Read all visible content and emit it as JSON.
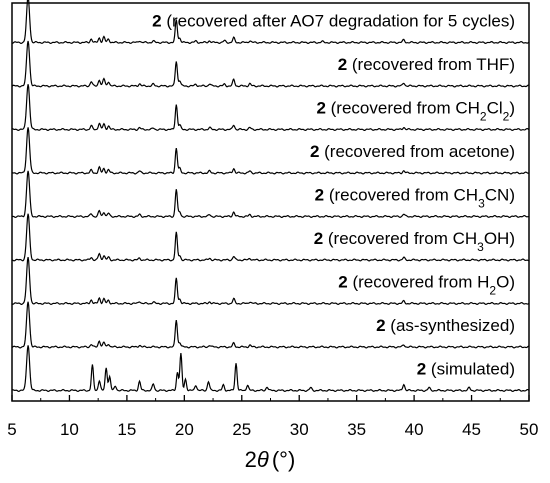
{
  "chart_data": {
    "type": "line",
    "title": "",
    "xlabel": {
      "prefix": "2",
      "symbol": "θ",
      "unit": "(°)"
    },
    "ylabel": "",
    "xlim": [
      5,
      50
    ],
    "xticks": [
      "5",
      "10",
      "15",
      "20",
      "25",
      "30",
      "35",
      "40",
      "45",
      "50"
    ],
    "y_ticks_labeled": false,
    "grid": false,
    "series": [
      {
        "label": {
          "bold": "2",
          "text": " (recovered after AO7 degradation for 5 cycles)"
        },
        "peaks": [
          [
            6.4,
            1.0
          ],
          [
            11.9,
            0.08
          ],
          [
            12.6,
            0.1
          ],
          [
            13.0,
            0.12
          ],
          [
            13.4,
            0.08
          ],
          [
            16.1,
            0.04
          ],
          [
            17.3,
            0.03
          ],
          [
            19.3,
            0.5
          ],
          [
            19.6,
            0.1
          ],
          [
            21.0,
            0.03
          ],
          [
            22.2,
            0.04
          ],
          [
            23.5,
            0.04
          ],
          [
            24.3,
            0.1
          ],
          [
            25.7,
            0.04
          ],
          [
            32.0,
            0.02
          ],
          [
            39.1,
            0.06
          ]
        ]
      },
      {
        "label": {
          "bold": "2",
          "text": " (recovered from THF)"
        },
        "peaks": [
          [
            6.4,
            1.0
          ],
          [
            11.9,
            0.1
          ],
          [
            12.6,
            0.14
          ],
          [
            13.0,
            0.16
          ],
          [
            13.4,
            0.1
          ],
          [
            16.1,
            0.05
          ],
          [
            17.3,
            0.04
          ],
          [
            19.3,
            0.55
          ],
          [
            19.6,
            0.12
          ],
          [
            21.0,
            0.04
          ],
          [
            22.2,
            0.05
          ],
          [
            23.5,
            0.04
          ],
          [
            24.3,
            0.14
          ],
          [
            25.7,
            0.05
          ],
          [
            39.1,
            0.07
          ]
        ]
      },
      {
        "label": {
          "bold": "2",
          "text": " (recovered from CH",
          "sub": "2",
          "text2": "Cl",
          "sub2": "2",
          "text3": ")"
        },
        "peaks": [
          [
            6.4,
            1.0
          ],
          [
            11.9,
            0.08
          ],
          [
            12.6,
            0.14
          ],
          [
            13.0,
            0.12
          ],
          [
            13.4,
            0.08
          ],
          [
            16.1,
            0.04
          ],
          [
            17.3,
            0.03
          ],
          [
            19.3,
            0.55
          ],
          [
            19.6,
            0.1
          ],
          [
            22.2,
            0.04
          ],
          [
            24.3,
            0.1
          ],
          [
            25.7,
            0.04
          ],
          [
            39.1,
            0.05
          ]
        ]
      },
      {
        "label": {
          "bold": "2",
          "text": " (recovered from acetone)"
        },
        "peaks": [
          [
            6.4,
            1.0
          ],
          [
            11.9,
            0.06
          ],
          [
            12.6,
            0.12
          ],
          [
            13.0,
            0.1
          ],
          [
            13.4,
            0.07
          ],
          [
            16.1,
            0.04
          ],
          [
            19.3,
            0.55
          ],
          [
            19.6,
            0.1
          ],
          [
            22.2,
            0.04
          ],
          [
            24.3,
            0.1
          ],
          [
            25.7,
            0.04
          ],
          [
            39.1,
            0.05
          ]
        ]
      },
      {
        "label": {
          "bold": "2",
          "text": " (recovered from CH",
          "sub": "3",
          "text2": "CN)"
        },
        "peaks": [
          [
            6.4,
            1.0
          ],
          [
            11.9,
            0.06
          ],
          [
            12.6,
            0.12
          ],
          [
            13.0,
            0.1
          ],
          [
            13.4,
            0.07
          ],
          [
            16.1,
            0.04
          ],
          [
            19.3,
            0.6
          ],
          [
            19.6,
            0.1
          ],
          [
            22.2,
            0.04
          ],
          [
            24.3,
            0.1
          ],
          [
            25.7,
            0.04
          ],
          [
            39.1,
            0.05
          ]
        ]
      },
      {
        "label": {
          "bold": "2",
          "text": " (recovered from CH",
          "sub": "3",
          "text2": "OH)"
        },
        "peaks": [
          [
            6.4,
            1.0
          ],
          [
            11.9,
            0.06
          ],
          [
            12.6,
            0.14
          ],
          [
            13.0,
            0.1
          ],
          [
            13.4,
            0.06
          ],
          [
            16.1,
            0.04
          ],
          [
            19.3,
            0.6
          ],
          [
            19.6,
            0.1
          ],
          [
            22.2,
            0.04
          ],
          [
            24.3,
            0.08
          ],
          [
            25.7,
            0.04
          ],
          [
            39.1,
            0.05
          ]
        ]
      },
      {
        "label": {
          "bold": "2",
          "text": " (recovered from H",
          "sub": "2",
          "text2": "O)"
        },
        "peaks": [
          [
            6.4,
            1.0
          ],
          [
            11.9,
            0.08
          ],
          [
            12.6,
            0.12
          ],
          [
            13.0,
            0.1
          ],
          [
            13.4,
            0.07
          ],
          [
            16.1,
            0.05
          ],
          [
            17.3,
            0.03
          ],
          [
            19.3,
            0.55
          ],
          [
            19.6,
            0.1
          ],
          [
            22.2,
            0.04
          ],
          [
            24.3,
            0.1
          ],
          [
            25.7,
            0.04
          ],
          [
            39.1,
            0.05
          ]
        ]
      },
      {
        "label": {
          "bold": "2",
          "text": " (as-synthesized)"
        },
        "peaks": [
          [
            6.4,
            1.0
          ],
          [
            11.9,
            0.06
          ],
          [
            12.6,
            0.14
          ],
          [
            13.0,
            0.1
          ],
          [
            13.4,
            0.07
          ],
          [
            16.1,
            0.04
          ],
          [
            19.3,
            0.6
          ],
          [
            19.6,
            0.1
          ],
          [
            22.2,
            0.04
          ],
          [
            24.3,
            0.08
          ],
          [
            25.7,
            0.04
          ],
          [
            39.1,
            0.05
          ]
        ]
      },
      {
        "label": {
          "bold": "2",
          "text": " (simulated)"
        },
        "peaks": [
          [
            6.4,
            1.0
          ],
          [
            12.0,
            0.55
          ],
          [
            12.6,
            0.22
          ],
          [
            13.2,
            0.5
          ],
          [
            13.5,
            0.3
          ],
          [
            14.0,
            0.1
          ],
          [
            16.1,
            0.2
          ],
          [
            17.3,
            0.14
          ],
          [
            19.4,
            0.4
          ],
          [
            19.7,
            0.8
          ],
          [
            20.1,
            0.25
          ],
          [
            21.0,
            0.12
          ],
          [
            22.1,
            0.2
          ],
          [
            23.4,
            0.12
          ],
          [
            24.5,
            0.6
          ],
          [
            25.5,
            0.12
          ],
          [
            27.2,
            0.08
          ],
          [
            31.0,
            0.06
          ],
          [
            39.1,
            0.14
          ],
          [
            41.3,
            0.06
          ],
          [
            44.8,
            0.06
          ]
        ]
      }
    ]
  }
}
